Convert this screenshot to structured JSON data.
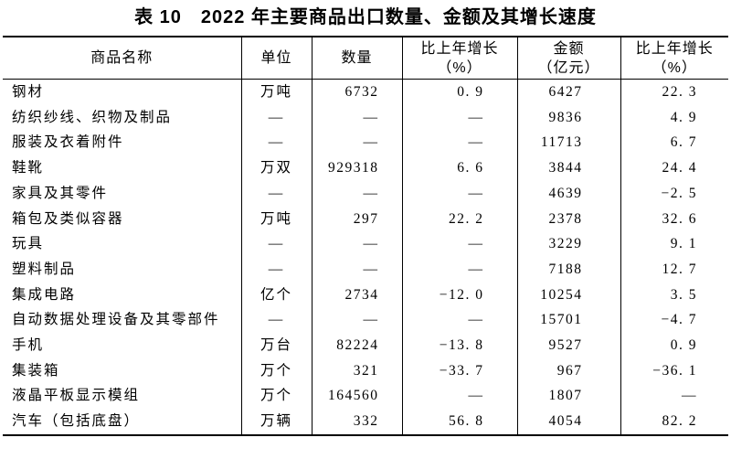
{
  "title": "表 10　2022 年主要商品出口数量、金额及其增长速度",
  "table": {
    "columns": [
      {
        "label": "商品名称"
      },
      {
        "label": "单位"
      },
      {
        "label": "数量"
      },
      {
        "label": "比上年增长",
        "label2": "（%）"
      },
      {
        "label": "金额",
        "label2": "（亿元）"
      },
      {
        "label": "比上年增长",
        "label2": "（%）"
      }
    ],
    "rows": [
      {
        "name": "钢材",
        "unit": "万吨",
        "quantity": "6732",
        "quantity_growth": "0. 9",
        "amount": "6427",
        "amount_growth": "22. 3"
      },
      {
        "name": "纺织纱线、织物及制品",
        "unit": "—",
        "quantity": "—",
        "quantity_growth": "—",
        "amount": "9836",
        "amount_growth": "4. 9"
      },
      {
        "name": "服装及衣着附件",
        "unit": "—",
        "quantity": "—",
        "quantity_growth": "—",
        "amount": "11713",
        "amount_growth": "6. 7"
      },
      {
        "name": "鞋靴",
        "unit": "万双",
        "quantity": "929318",
        "quantity_growth": "6. 6",
        "amount": "3844",
        "amount_growth": "24. 4"
      },
      {
        "name": "家具及其零件",
        "unit": "—",
        "quantity": "—",
        "quantity_growth": "—",
        "amount": "4639",
        "amount_growth": "−2. 5"
      },
      {
        "name": "箱包及类似容器",
        "unit": "万吨",
        "quantity": "297",
        "quantity_growth": "22. 2",
        "amount": "2378",
        "amount_growth": "32. 6"
      },
      {
        "name": "玩具",
        "unit": "—",
        "quantity": "—",
        "quantity_growth": "—",
        "amount": "3229",
        "amount_growth": "9. 1"
      },
      {
        "name": "塑料制品",
        "unit": "—",
        "quantity": "—",
        "quantity_growth": "—",
        "amount": "7188",
        "amount_growth": "12. 7"
      },
      {
        "name": "集成电路",
        "unit": "亿个",
        "quantity": "2734",
        "quantity_growth": "−12. 0",
        "amount": "10254",
        "amount_growth": "3. 5"
      },
      {
        "name": "自动数据处理设备及其零部件",
        "unit": "—",
        "quantity": "—",
        "quantity_growth": "—",
        "amount": "15701",
        "amount_growth": "−4. 7"
      },
      {
        "name": "手机",
        "unit": "万台",
        "quantity": "82224",
        "quantity_growth": "−13. 8",
        "amount": "9527",
        "amount_growth": "0. 9"
      },
      {
        "name": "集装箱",
        "unit": "万个",
        "quantity": "321",
        "quantity_growth": "−33. 7",
        "amount": "967",
        "amount_growth": "−36. 1"
      },
      {
        "name": "液晶平板显示模组",
        "unit": "万个",
        "quantity": "164560",
        "quantity_growth": "—",
        "amount": "1807",
        "amount_growth": "—"
      },
      {
        "name": "汽车（包括底盘）",
        "unit": "万辆",
        "quantity": "332",
        "quantity_growth": "56. 8",
        "amount": "4054",
        "amount_growth": "82. 2"
      }
    ]
  },
  "colors": {
    "text": "#000000",
    "border": "#000000",
    "background": "#ffffff"
  }
}
